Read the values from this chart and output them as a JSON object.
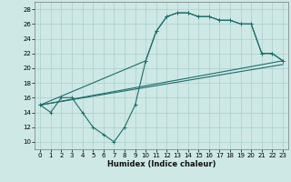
{
  "xlabel": "Humidex (Indice chaleur)",
  "xlim": [
    -0.5,
    23.5
  ],
  "ylim": [
    9,
    29
  ],
  "xticks": [
    0,
    1,
    2,
    3,
    4,
    5,
    6,
    7,
    8,
    9,
    10,
    11,
    12,
    13,
    14,
    15,
    16,
    17,
    18,
    19,
    20,
    21,
    22,
    23
  ],
  "yticks": [
    10,
    12,
    14,
    16,
    18,
    20,
    22,
    24,
    26,
    28
  ],
  "background_color": "#cde8e5",
  "grid_color": "#aacfcc",
  "line_color": "#1e6e6a",
  "line1_x": [
    0,
    1,
    2,
    3,
    4,
    5,
    6,
    7,
    8,
    9,
    10,
    11,
    12,
    13,
    14,
    15,
    16,
    17,
    18,
    19,
    20,
    21,
    22,
    23
  ],
  "line1_y": [
    15,
    14,
    16,
    16,
    14,
    12,
    11,
    10,
    12,
    15,
    21,
    25,
    27,
    27.5,
    27.5,
    27,
    27,
    26.5,
    26.5,
    26,
    26,
    22,
    22,
    21
  ],
  "line2_x": [
    0,
    23
  ],
  "line2_y": [
    15,
    21
  ],
  "line3_x": [
    0,
    10,
    11,
    12,
    13,
    14,
    15,
    16,
    17,
    18,
    19,
    20,
    21,
    22,
    23
  ],
  "line3_y": [
    15,
    21,
    25,
    27,
    27.5,
    27.5,
    27,
    27,
    26.5,
    26.5,
    26,
    26,
    22,
    22,
    21
  ],
  "line4_x": [
    0,
    23
  ],
  "line4_y": [
    15,
    20.5
  ]
}
